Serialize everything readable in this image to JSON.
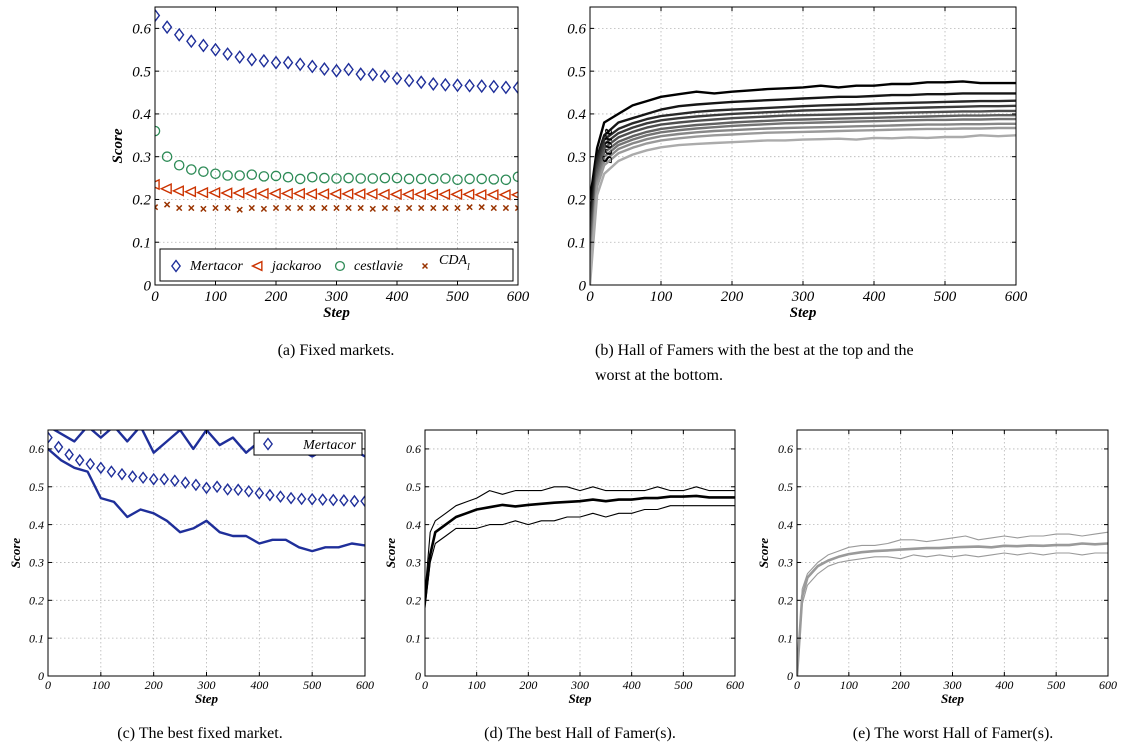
{
  "chart_data": [
    {
      "id": "a",
      "type": "scatter",
      "caption": "(a) Fixed markets.",
      "xlabel": "Step",
      "ylabel": "Score",
      "xlim": [
        0,
        600
      ],
      "ylim": [
        0,
        0.65
      ],
      "xticks": [
        0,
        100,
        200,
        300,
        400,
        500,
        600
      ],
      "yticks": [
        0,
        0.1,
        0.2,
        0.3,
        0.4,
        0.5,
        0.6
      ],
      "grid": true,
      "legend_position": "bottom",
      "x": [
        0,
        20,
        40,
        60,
        80,
        100,
        120,
        140,
        160,
        180,
        200,
        220,
        240,
        260,
        280,
        300,
        320,
        340,
        360,
        380,
        400,
        420,
        440,
        460,
        480,
        500,
        520,
        540,
        560,
        580,
        600
      ],
      "series": [
        {
          "name": "Mertacor",
          "marker": "diamond",
          "color": "#1f2f9a",
          "values": [
            0.63,
            0.603,
            0.585,
            0.57,
            0.56,
            0.55,
            0.54,
            0.533,
            0.527,
            0.524,
            0.52,
            0.52,
            0.516,
            0.511,
            0.505,
            0.501,
            0.504,
            0.493,
            0.492,
            0.488,
            0.483,
            0.478,
            0.474,
            0.47,
            0.468,
            0.467,
            0.466,
            0.465,
            0.464,
            0.462,
            0.462
          ]
        },
        {
          "name": "jackaroo",
          "marker": "triangle-left",
          "color": "#cc3300",
          "values": [
            0.235,
            0.225,
            0.22,
            0.218,
            0.216,
            0.216,
            0.215,
            0.215,
            0.214,
            0.214,
            0.214,
            0.214,
            0.214,
            0.213,
            0.213,
            0.213,
            0.213,
            0.213,
            0.213,
            0.212,
            0.212,
            0.212,
            0.212,
            0.212,
            0.212,
            0.212,
            0.212,
            0.211,
            0.211,
            0.211,
            0.211
          ]
        },
        {
          "name": "cestlavie",
          "marker": "circle",
          "color": "#2e8b57",
          "values": [
            0.36,
            0.3,
            0.28,
            0.27,
            0.265,
            0.26,
            0.256,
            0.256,
            0.258,
            0.254,
            0.255,
            0.252,
            0.248,
            0.252,
            0.25,
            0.249,
            0.25,
            0.249,
            0.249,
            0.25,
            0.25,
            0.248,
            0.248,
            0.248,
            0.249,
            0.246,
            0.248,
            0.248,
            0.247,
            0.246,
            0.253
          ]
        },
        {
          "name": "CDA_l",
          "marker": "x",
          "color": "#993300",
          "values": [
            0.182,
            0.188,
            0.18,
            0.18,
            0.178,
            0.18,
            0.18,
            0.176,
            0.18,
            0.178,
            0.18,
            0.18,
            0.18,
            0.18,
            0.18,
            0.18,
            0.18,
            0.18,
            0.178,
            0.18,
            0.178,
            0.18,
            0.18,
            0.18,
            0.18,
            0.18,
            0.182,
            0.182,
            0.18,
            0.18,
            0.18
          ]
        }
      ]
    },
    {
      "id": "b",
      "type": "line",
      "caption": "(b) Hall of Famers with the best at the top and the worst at the bottom.",
      "xlabel": "Step",
      "ylabel": "Score",
      "xlim": [
        0,
        600
      ],
      "ylim": [
        0,
        0.65
      ],
      "xticks": [
        0,
        100,
        200,
        300,
        400,
        500,
        600
      ],
      "yticks": [
        0,
        0.1,
        0.2,
        0.3,
        0.4,
        0.5,
        0.6
      ],
      "grid": true,
      "x": [
        0,
        10,
        20,
        40,
        60,
        80,
        100,
        125,
        150,
        175,
        200,
        225,
        250,
        275,
        300,
        325,
        350,
        375,
        400,
        425,
        450,
        475,
        500,
        525,
        550,
        575,
        600
      ],
      "series": [
        {
          "values": [
            0.2,
            0.32,
            0.38,
            0.4,
            0.42,
            0.43,
            0.44,
            0.446,
            0.452,
            0.448,
            0.452,
            0.455,
            0.458,
            0.46,
            0.462,
            0.466,
            0.462,
            0.466,
            0.466,
            0.47,
            0.47,
            0.474,
            0.474,
            0.476,
            0.472,
            0.472,
            0.472
          ],
          "color": "#000000"
        },
        {
          "values": [
            0.16,
            0.3,
            0.35,
            0.38,
            0.39,
            0.4,
            0.41,
            0.418,
            0.422,
            0.425,
            0.428,
            0.43,
            0.432,
            0.434,
            0.436,
            0.438,
            0.44,
            0.44,
            0.442,
            0.444,
            0.444,
            0.446,
            0.446,
            0.448,
            0.448,
            0.448,
            0.448
          ],
          "color": "#151515"
        },
        {
          "values": [
            0.13,
            0.29,
            0.34,
            0.365,
            0.378,
            0.388,
            0.395,
            0.4,
            0.405,
            0.408,
            0.41,
            0.412,
            0.414,
            0.416,
            0.418,
            0.42,
            0.421,
            0.422,
            0.424,
            0.425,
            0.426,
            0.427,
            0.428,
            0.429,
            0.43,
            0.43,
            0.431
          ],
          "color": "#282828"
        },
        {
          "values": [
            0.11,
            0.28,
            0.33,
            0.355,
            0.368,
            0.378,
            0.385,
            0.39,
            0.394,
            0.397,
            0.4,
            0.402,
            0.404,
            0.406,
            0.408,
            0.409,
            0.41,
            0.411,
            0.412,
            0.413,
            0.414,
            0.415,
            0.416,
            0.417,
            0.418,
            0.418,
            0.419
          ],
          "color": "#3b3b3b"
        },
        {
          "values": [
            0.09,
            0.27,
            0.32,
            0.345,
            0.358,
            0.368,
            0.375,
            0.38,
            0.384,
            0.387,
            0.39,
            0.392,
            0.394,
            0.396,
            0.397,
            0.398,
            0.399,
            0.4,
            0.401,
            0.402,
            0.403,
            0.404,
            0.405,
            0.406,
            0.406,
            0.407,
            0.407
          ],
          "color": "#4e4e4e"
        },
        {
          "values": [
            0.07,
            0.26,
            0.31,
            0.335,
            0.348,
            0.358,
            0.365,
            0.37,
            0.374,
            0.377,
            0.38,
            0.382,
            0.384,
            0.386,
            0.387,
            0.388,
            0.389,
            0.39,
            0.391,
            0.392,
            0.393,
            0.394,
            0.395,
            0.396,
            0.396,
            0.397,
            0.397
          ],
          "color": "#616161"
        },
        {
          "values": [
            0.05,
            0.25,
            0.3,
            0.327,
            0.34,
            0.35,
            0.357,
            0.362,
            0.366,
            0.369,
            0.372,
            0.374,
            0.376,
            0.378,
            0.379,
            0.38,
            0.381,
            0.382,
            0.383,
            0.384,
            0.385,
            0.386,
            0.386,
            0.387,
            0.387,
            0.388,
            0.388
          ],
          "color": "#747474"
        },
        {
          "values": [
            0.03,
            0.24,
            0.29,
            0.318,
            0.331,
            0.341,
            0.348,
            0.353,
            0.357,
            0.36,
            0.362,
            0.364,
            0.366,
            0.367,
            0.368,
            0.369,
            0.37,
            0.371,
            0.372,
            0.373,
            0.374,
            0.375,
            0.375,
            0.376,
            0.376,
            0.377,
            0.377
          ],
          "color": "#878787"
        },
        {
          "values": [
            0.02,
            0.23,
            0.28,
            0.308,
            0.321,
            0.331,
            0.338,
            0.343,
            0.347,
            0.35,
            0.352,
            0.354,
            0.356,
            0.357,
            0.358,
            0.359,
            0.36,
            0.361,
            0.362,
            0.363,
            0.364,
            0.365,
            0.365,
            0.366,
            0.366,
            0.367,
            0.367
          ],
          "color": "#9a9a9a"
        },
        {
          "values": [
            0.0,
            0.21,
            0.26,
            0.29,
            0.305,
            0.315,
            0.322,
            0.327,
            0.33,
            0.332,
            0.334,
            0.336,
            0.338,
            0.338,
            0.34,
            0.341,
            0.342,
            0.34,
            0.344,
            0.343,
            0.345,
            0.344,
            0.346,
            0.346,
            0.35,
            0.348,
            0.35
          ],
          "color": "#ababab"
        }
      ]
    },
    {
      "id": "c",
      "type": "scatter",
      "caption": "(c) The best fixed market.",
      "xlabel": "Step",
      "ylabel": "Score",
      "xlim": [
        0,
        600
      ],
      "ylim": [
        0,
        0.65
      ],
      "xticks": [
        0,
        100,
        200,
        300,
        400,
        500,
        600
      ],
      "yticks": [
        0,
        0.1,
        0.2,
        0.3,
        0.4,
        0.5,
        0.6
      ],
      "grid": true,
      "legend_position": "top-right",
      "series": [
        {
          "name": "Mertacor",
          "marker": "diamond",
          "color": "#1f2f9a",
          "x": [
            0,
            20,
            40,
            60,
            80,
            100,
            120,
            140,
            160,
            180,
            200,
            220,
            240,
            260,
            280,
            300,
            320,
            340,
            360,
            380,
            400,
            420,
            440,
            460,
            480,
            500,
            520,
            540,
            560,
            580,
            600
          ],
          "values": [
            0.63,
            0.605,
            0.585,
            0.57,
            0.56,
            0.55,
            0.54,
            0.533,
            0.527,
            0.524,
            0.52,
            0.52,
            0.516,
            0.511,
            0.505,
            0.497,
            0.5,
            0.493,
            0.492,
            0.488,
            0.483,
            0.478,
            0.474,
            0.47,
            0.468,
            0.467,
            0.466,
            0.465,
            0.464,
            0.462,
            0.462
          ]
        },
        {
          "line": "upper",
          "color": "#1f2f9a",
          "x": [
            0,
            25,
            50,
            75,
            100,
            125,
            150,
            175,
            200,
            225,
            250,
            275,
            300,
            325,
            350,
            375,
            400,
            425,
            450,
            475,
            500,
            525,
            550,
            575,
            600
          ],
          "values": [
            0.66,
            0.64,
            0.62,
            0.66,
            0.63,
            0.66,
            0.62,
            0.66,
            0.59,
            0.62,
            0.65,
            0.6,
            0.65,
            0.61,
            0.63,
            0.59,
            0.62,
            0.6,
            0.61,
            0.6,
            0.58,
            0.6,
            0.61,
            0.6,
            0.58
          ]
        },
        {
          "line": "lower",
          "color": "#1f2f9a",
          "x": [
            0,
            25,
            50,
            75,
            100,
            125,
            150,
            175,
            200,
            225,
            250,
            275,
            300,
            325,
            350,
            375,
            400,
            425,
            450,
            475,
            500,
            525,
            550,
            575,
            600
          ],
          "values": [
            0.6,
            0.57,
            0.55,
            0.54,
            0.47,
            0.46,
            0.42,
            0.44,
            0.43,
            0.41,
            0.38,
            0.39,
            0.41,
            0.38,
            0.37,
            0.37,
            0.35,
            0.36,
            0.36,
            0.34,
            0.33,
            0.34,
            0.34,
            0.35,
            0.345
          ]
        }
      ]
    },
    {
      "id": "d",
      "type": "line",
      "caption": "(d) The best Hall of Famer(s).",
      "xlabel": "Step",
      "ylabel": "Score",
      "xlim": [
        0,
        600
      ],
      "ylim": [
        0,
        0.65
      ],
      "xticks": [
        0,
        100,
        200,
        300,
        400,
        500,
        600
      ],
      "yticks": [
        0,
        0.1,
        0.2,
        0.3,
        0.4,
        0.5,
        0.6
      ],
      "grid": true,
      "x": [
        0,
        10,
        20,
        40,
        60,
        80,
        100,
        125,
        150,
        175,
        200,
        225,
        250,
        275,
        300,
        325,
        350,
        375,
        400,
        425,
        450,
        475,
        500,
        525,
        550,
        575,
        600
      ],
      "series": [
        {
          "values": [
            0.2,
            0.32,
            0.38,
            0.4,
            0.42,
            0.43,
            0.44,
            0.446,
            0.452,
            0.448,
            0.452,
            0.455,
            0.458,
            0.46,
            0.462,
            0.466,
            0.462,
            0.466,
            0.466,
            0.47,
            0.47,
            0.474,
            0.474,
            0.476,
            0.472,
            0.472,
            0.472
          ],
          "color": "#000000",
          "width": 2.6
        },
        {
          "values": [
            0.22,
            0.38,
            0.41,
            0.43,
            0.45,
            0.46,
            0.47,
            0.49,
            0.48,
            0.49,
            0.49,
            0.49,
            0.5,
            0.5,
            0.49,
            0.5,
            0.49,
            0.49,
            0.49,
            0.49,
            0.5,
            0.49,
            0.49,
            0.5,
            0.49,
            0.49,
            0.49
          ],
          "color": "#000000",
          "width": 1.1
        },
        {
          "values": [
            0.18,
            0.3,
            0.35,
            0.37,
            0.39,
            0.39,
            0.39,
            0.4,
            0.4,
            0.41,
            0.4,
            0.41,
            0.41,
            0.42,
            0.42,
            0.43,
            0.42,
            0.43,
            0.43,
            0.44,
            0.44,
            0.45,
            0.45,
            0.45,
            0.45,
            0.45,
            0.45
          ],
          "color": "#000000",
          "width": 1.1
        }
      ]
    },
    {
      "id": "e",
      "type": "line",
      "caption": "(e) The worst Hall of Famer(s).",
      "xlabel": "Step",
      "ylabel": "Score",
      "xlim": [
        0,
        600
      ],
      "ylim": [
        0,
        0.65
      ],
      "xticks": [
        0,
        100,
        200,
        300,
        400,
        500,
        600
      ],
      "yticks": [
        0,
        0.1,
        0.2,
        0.3,
        0.4,
        0.5,
        0.6
      ],
      "grid": true,
      "x": [
        0,
        10,
        20,
        40,
        60,
        80,
        100,
        125,
        150,
        175,
        200,
        225,
        250,
        275,
        300,
        325,
        350,
        375,
        400,
        425,
        450,
        475,
        500,
        525,
        550,
        575,
        600
      ],
      "series": [
        {
          "values": [
            0.0,
            0.21,
            0.26,
            0.29,
            0.305,
            0.315,
            0.322,
            0.327,
            0.33,
            0.332,
            0.334,
            0.336,
            0.338,
            0.338,
            0.34,
            0.341,
            0.342,
            0.34,
            0.344,
            0.343,
            0.345,
            0.344,
            0.346,
            0.346,
            0.35,
            0.348,
            0.35
          ],
          "color": "#9a9a9a",
          "width": 2.6
        },
        {
          "values": [
            0.0,
            0.23,
            0.27,
            0.3,
            0.32,
            0.33,
            0.34,
            0.345,
            0.345,
            0.35,
            0.36,
            0.36,
            0.355,
            0.36,
            0.365,
            0.37,
            0.36,
            0.365,
            0.37,
            0.365,
            0.37,
            0.37,
            0.375,
            0.375,
            0.37,
            0.375,
            0.38
          ],
          "color": "#9a9a9a",
          "width": 1.1
        },
        {
          "values": [
            0.0,
            0.19,
            0.24,
            0.27,
            0.29,
            0.3,
            0.305,
            0.31,
            0.315,
            0.315,
            0.31,
            0.32,
            0.315,
            0.32,
            0.315,
            0.32,
            0.315,
            0.32,
            0.325,
            0.32,
            0.325,
            0.32,
            0.325,
            0.325,
            0.32,
            0.325,
            0.325
          ],
          "color": "#9a9a9a",
          "width": 1.1
        }
      ]
    }
  ]
}
